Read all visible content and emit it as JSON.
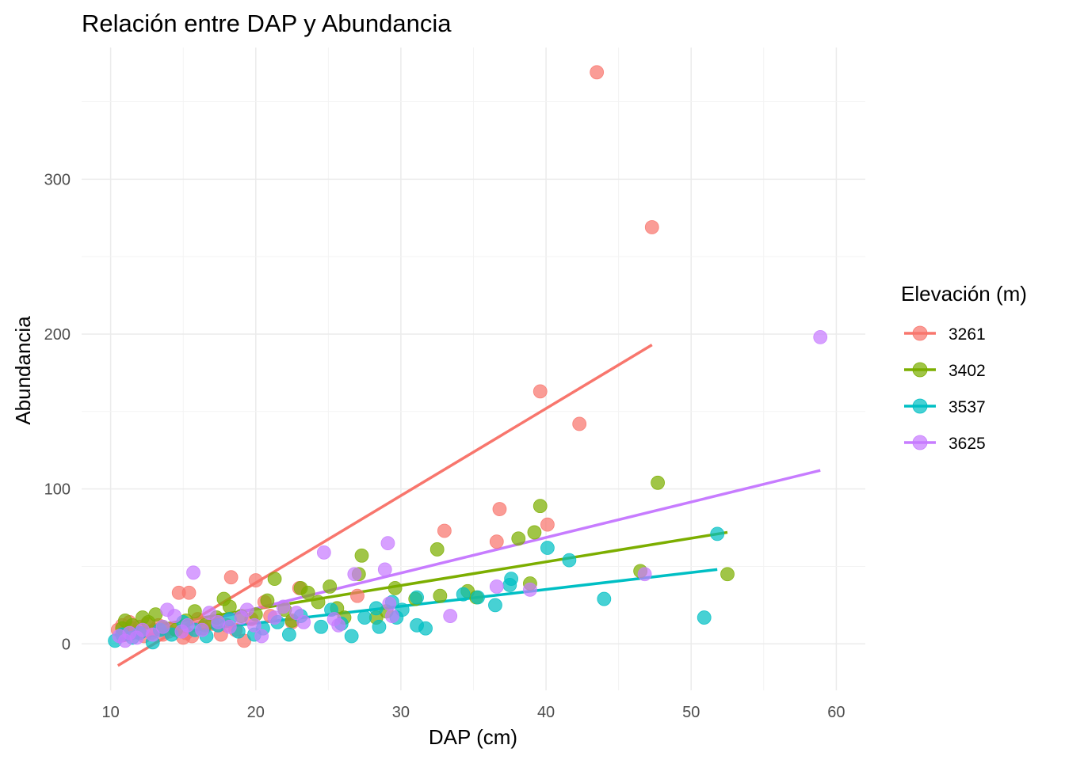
{
  "chart_data": {
    "type": "scatter",
    "title": "Relación entre DAP y Abundancia",
    "xlabel": "DAP (cm)",
    "ylabel": "Abundancia",
    "xlim": [
      8,
      62
    ],
    "ylim": [
      -30,
      385
    ],
    "x_ticks": [
      10,
      20,
      30,
      40,
      50,
      60
    ],
    "y_ticks": [
      0,
      100,
      200,
      300
    ],
    "grid": true,
    "legend": {
      "title": "Elevación (m)",
      "position": "right"
    },
    "series": [
      {
        "name": "3261",
        "color": "#F8766D",
        "trend": [
          [
            10.5,
            -14
          ],
          [
            47.3,
            193
          ]
        ],
        "points": [
          [
            10.5,
            9
          ],
          [
            10.8,
            12
          ],
          [
            11.0,
            6
          ],
          [
            11.3,
            14
          ],
          [
            11.5,
            10
          ],
          [
            11.8,
            8
          ],
          [
            12.0,
            11
          ],
          [
            12.3,
            5
          ],
          [
            12.5,
            13
          ],
          [
            12.8,
            7
          ],
          [
            13.0,
            9
          ],
          [
            13.3,
            12
          ],
          [
            13.6,
            6
          ],
          [
            14.0,
            8
          ],
          [
            14.3,
            10
          ],
          [
            14.7,
            33
          ],
          [
            15.0,
            4
          ],
          [
            15.2,
            7
          ],
          [
            15.4,
            33
          ],
          [
            15.6,
            5
          ],
          [
            16.0,
            16
          ],
          [
            16.4,
            10
          ],
          [
            17.0,
            13
          ],
          [
            17.6,
            6
          ],
          [
            18.0,
            12
          ],
          [
            18.3,
            43
          ],
          [
            18.6,
            9
          ],
          [
            19.2,
            2
          ],
          [
            19.7,
            16
          ],
          [
            20.0,
            41
          ],
          [
            20.6,
            27
          ],
          [
            21.0,
            18
          ],
          [
            22.5,
            14
          ],
          [
            23.0,
            36
          ],
          [
            27.0,
            31
          ],
          [
            33.0,
            73
          ],
          [
            36.6,
            66
          ],
          [
            36.8,
            87
          ],
          [
            39.6,
            163
          ],
          [
            40.1,
            77
          ],
          [
            42.3,
            142
          ],
          [
            43.5,
            369
          ],
          [
            47.3,
            269
          ]
        ]
      },
      {
        "name": "3402",
        "color": "#7CAE00",
        "trend": [
          [
            10.5,
            8
          ],
          [
            52.5,
            72
          ]
        ],
        "points": [
          [
            10.8,
            10
          ],
          [
            11.0,
            15
          ],
          [
            11.5,
            12
          ],
          [
            12.2,
            17
          ],
          [
            12.6,
            14
          ],
          [
            13.1,
            19
          ],
          [
            13.6,
            11
          ],
          [
            14.5,
            9
          ],
          [
            15.2,
            15
          ],
          [
            15.8,
            21
          ],
          [
            16.5,
            12
          ],
          [
            17.3,
            17
          ],
          [
            17.8,
            29
          ],
          [
            18.2,
            24
          ],
          [
            19.0,
            18
          ],
          [
            20.0,
            19
          ],
          [
            20.8,
            28
          ],
          [
            21.3,
            42
          ],
          [
            22.0,
            22
          ],
          [
            22.5,
            15
          ],
          [
            23.1,
            36
          ],
          [
            23.6,
            33
          ],
          [
            24.3,
            27
          ],
          [
            25.1,
            37
          ],
          [
            25.6,
            23
          ],
          [
            26.1,
            17
          ],
          [
            27.1,
            45
          ],
          [
            27.3,
            57
          ],
          [
            28.3,
            17
          ],
          [
            29.0,
            21
          ],
          [
            29.6,
            36
          ],
          [
            31.0,
            29
          ],
          [
            32.5,
            61
          ],
          [
            32.7,
            31
          ],
          [
            34.6,
            34
          ],
          [
            35.2,
            30
          ],
          [
            38.1,
            68
          ],
          [
            38.9,
            39
          ],
          [
            39.2,
            72
          ],
          [
            39.6,
            89
          ],
          [
            46.5,
            47
          ],
          [
            47.7,
            104
          ],
          [
            52.5,
            45
          ]
        ]
      },
      {
        "name": "3537",
        "color": "#00BFC4",
        "trend": [
          [
            10.5,
            3
          ],
          [
            51.8,
            48
          ]
        ],
        "points": [
          [
            10.3,
            2
          ],
          [
            10.8,
            6
          ],
          [
            11.5,
            4
          ],
          [
            12.0,
            7
          ],
          [
            12.9,
            1
          ],
          [
            13.4,
            9
          ],
          [
            14.2,
            6
          ],
          [
            15.0,
            14
          ],
          [
            15.8,
            9
          ],
          [
            16.6,
            5
          ],
          [
            17.4,
            12
          ],
          [
            18.2,
            16
          ],
          [
            18.8,
            8
          ],
          [
            19.9,
            6
          ],
          [
            20.5,
            10
          ],
          [
            21.5,
            14
          ],
          [
            22.3,
            6
          ],
          [
            23.1,
            18
          ],
          [
            24.5,
            11
          ],
          [
            25.2,
            22
          ],
          [
            25.9,
            13
          ],
          [
            26.6,
            5
          ],
          [
            27.5,
            17
          ],
          [
            28.3,
            23
          ],
          [
            28.5,
            11
          ],
          [
            29.4,
            27
          ],
          [
            29.7,
            17
          ],
          [
            30.1,
            22
          ],
          [
            31.1,
            30
          ],
          [
            31.1,
            12
          ],
          [
            31.7,
            10
          ],
          [
            34.3,
            32
          ],
          [
            35.3,
            30
          ],
          [
            36.5,
            25
          ],
          [
            37.5,
            38
          ],
          [
            37.6,
            42
          ],
          [
            40.1,
            62
          ],
          [
            41.6,
            54
          ],
          [
            44.0,
            29
          ],
          [
            50.9,
            17
          ],
          [
            51.8,
            71
          ]
        ]
      },
      {
        "name": "3625",
        "color": "#C77CFF",
        "trend": [
          [
            10.5,
            1
          ],
          [
            58.9,
            112
          ]
        ],
        "points": [
          [
            10.6,
            5
          ],
          [
            11.0,
            2
          ],
          [
            11.3,
            7
          ],
          [
            11.8,
            4
          ],
          [
            12.2,
            9
          ],
          [
            12.9,
            6
          ],
          [
            13.6,
            11
          ],
          [
            13.9,
            22
          ],
          [
            14.4,
            18
          ],
          [
            14.9,
            8
          ],
          [
            15.3,
            12
          ],
          [
            15.7,
            46
          ],
          [
            16.3,
            9
          ],
          [
            16.8,
            20
          ],
          [
            17.4,
            14
          ],
          [
            18.2,
            11
          ],
          [
            19.0,
            17
          ],
          [
            19.4,
            22
          ],
          [
            19.9,
            12
          ],
          [
            20.4,
            5
          ],
          [
            21.3,
            17
          ],
          [
            21.9,
            24
          ],
          [
            22.8,
            20
          ],
          [
            23.3,
            14
          ],
          [
            24.7,
            59
          ],
          [
            25.4,
            16
          ],
          [
            25.7,
            12
          ],
          [
            26.8,
            45
          ],
          [
            28.9,
            48
          ],
          [
            29.1,
            65
          ],
          [
            29.2,
            26
          ],
          [
            29.4,
            18
          ],
          [
            33.4,
            18
          ],
          [
            36.6,
            37
          ],
          [
            38.9,
            35
          ],
          [
            46.8,
            45
          ],
          [
            58.9,
            198
          ]
        ]
      }
    ]
  }
}
